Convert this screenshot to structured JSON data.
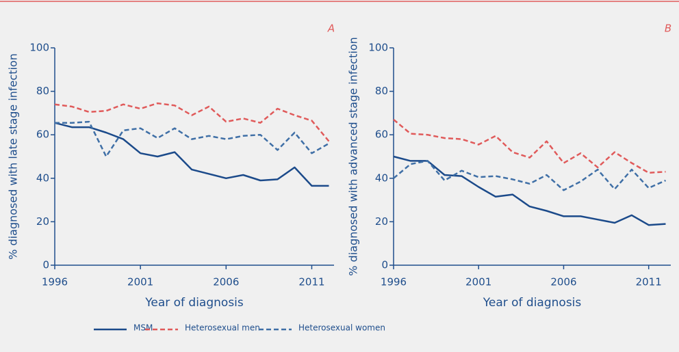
{
  "chart_data": [
    {
      "type": "line",
      "panel_label": "A",
      "y_label": "% diagnosed with late stage infection",
      "x_label": "Year of diagnosis",
      "x": [
        1996,
        1997,
        1998,
        1999,
        2000,
        2001,
        2002,
        2003,
        2004,
        2005,
        2006,
        2007,
        2008,
        2009,
        2010,
        2011,
        2012
      ],
      "series": [
        {
          "name": "MSM",
          "color": "#1b4a8a",
          "line_style": "solid",
          "values": [
            65.5,
            63.5,
            63.5,
            61,
            58,
            51.5,
            50,
            52,
            44,
            42,
            40,
            41.5,
            39,
            39.5,
            45,
            36.5,
            36.5
          ]
        },
        {
          "name": "Heterosexual men",
          "color": "#e05a5a",
          "line_style": "dashed",
          "values": [
            74,
            73,
            70.5,
            71,
            74,
            72,
            74.5,
            73.5,
            69,
            73,
            66,
            67.5,
            65.5,
            72,
            69,
            66.5,
            57
          ]
        },
        {
          "name": "Heterosexual women",
          "color": "#3f6fa6",
          "line_style": "dashed",
          "values": [
            65.5,
            65.5,
            66,
            50,
            62,
            63,
            58.5,
            63,
            58,
            59.5,
            58,
            59.5,
            60,
            53,
            61,
            51.5,
            56
          ]
        }
      ],
      "xlim": [
        1996,
        2012.3
      ],
      "ylim": [
        0,
        100
      ],
      "xticks": [
        1996,
        2001,
        2006,
        2011
      ],
      "yticks": [
        0,
        20,
        40,
        60,
        80,
        100
      ]
    },
    {
      "type": "line",
      "panel_label": "B",
      "y_label": "% diagnosed with advanced stage infection",
      "x_label": "Year of diagnosis",
      "x": [
        1996,
        1997,
        1998,
        1999,
        2000,
        2001,
        2002,
        2003,
        2004,
        2005,
        2006,
        2007,
        2008,
        2009,
        2010,
        2011,
        2012
      ],
      "series": [
        {
          "name": "MSM",
          "color": "#1b4a8a",
          "line_style": "solid",
          "values": [
            50,
            48,
            48,
            41.5,
            41,
            36,
            31.5,
            32.5,
            27,
            25,
            22.5,
            22.5,
            21,
            19.5,
            23,
            18.5,
            19
          ]
        },
        {
          "name": "Heterosexual men",
          "color": "#e05a5a",
          "line_style": "dashed",
          "values": [
            67,
            60.5,
            60,
            58.5,
            58,
            55.5,
            59.5,
            52,
            49.5,
            57,
            47,
            51.5,
            45,
            52,
            47,
            42.5,
            43
          ]
        },
        {
          "name": "Heterosexual women",
          "color": "#3f6fa6",
          "line_style": "dashed",
          "values": [
            40,
            46.5,
            48,
            39,
            43.5,
            40.5,
            41,
            39.5,
            37.5,
            41.5,
            34.5,
            38.5,
            44,
            35,
            44,
            35.5,
            39
          ]
        }
      ],
      "xlim": [
        1996,
        2012.3
      ],
      "ylim": [
        0,
        100
      ],
      "xticks": [
        1996,
        2001,
        2006,
        2011
      ],
      "yticks": [
        0,
        20,
        40,
        60,
        80,
        100
      ]
    }
  ]
}
